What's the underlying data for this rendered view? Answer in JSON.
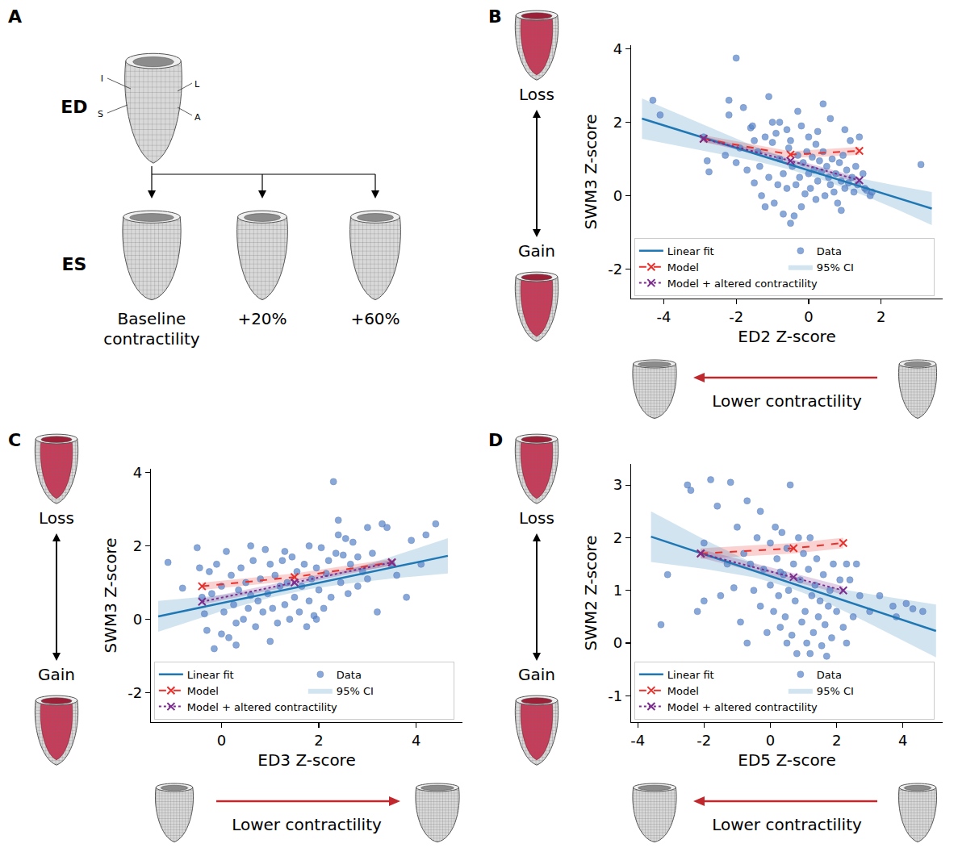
{
  "diagram": {
    "panel": "A",
    "rows": [
      "ED",
      "ES"
    ],
    "mesh_labels": [
      "I",
      "L",
      "S",
      "A"
    ],
    "columns": [
      "Baseline contractility",
      "+20%",
      "+60%"
    ]
  },
  "chart_data": [
    {
      "panel": "B",
      "type": "scatter",
      "x_label": "ED2 Z-score",
      "y_label": "SWM3 Z-score",
      "xlim": [
        -4.9,
        3.7
      ],
      "xticks": [
        -4,
        -2,
        0,
        2
      ],
      "ylim": [
        -2.8,
        4.1
      ],
      "yticks": [
        -2,
        0,
        2,
        4
      ],
      "grid": false,
      "legend": "lower left",
      "annotations": {
        "loss": "Loss",
        "gain": "Gain",
        "x_arrow": "Lower contractility"
      },
      "series": [
        {
          "name": "Linear fit",
          "type": "line",
          "color": "#1f77b4",
          "line_style": "solid",
          "x": [
            -4.6,
            3.4
          ],
          "values": [
            2.1,
            -0.35
          ]
        },
        {
          "name": "Data",
          "type": "scatter",
          "color": "#5b87cc",
          "marker": "circle",
          "x": [
            -4.3,
            -4.1,
            -2.9,
            -2.8,
            -2.75,
            -2.2,
            -2.2,
            -2.0,
            -1.9,
            -1.8,
            -1.6,
            -1.55,
            -1.5,
            -1.4,
            -1.35,
            -1.3,
            -1.2,
            -1.1,
            -1.0,
            -1.0,
            -0.9,
            -0.85,
            -0.8,
            -0.7,
            -0.7,
            -0.6,
            -0.55,
            -0.5,
            -0.45,
            -0.4,
            -0.35,
            -0.3,
            -0.3,
            -0.25,
            -0.2,
            -0.15,
            -0.1,
            -0.05,
            0.0,
            0.0,
            0.05,
            0.1,
            0.15,
            0.2,
            0.2,
            0.25,
            0.3,
            0.35,
            0.4,
            0.45,
            0.5,
            0.55,
            0.6,
            0.6,
            0.65,
            0.7,
            0.75,
            0.8,
            0.85,
            0.9,
            0.95,
            1.0,
            1.05,
            1.1,
            1.15,
            1.2,
            1.25,
            1.3,
            1.35,
            1.4,
            1.5,
            1.55,
            1.6,
            1.7,
            1.75,
            3.1,
            -1.2,
            -0.6,
            -1.7,
            -1.5,
            -2.0,
            -1.1,
            -0.2,
            -0.95,
            0.4,
            -2.3,
            -0.5,
            1.0,
            0.9,
            -0.8,
            0.25
          ],
          "values": [
            2.6,
            2.2,
            1.6,
            0.95,
            0.65,
            2.6,
            2.2,
            3.75,
            1.3,
            2.4,
            1.85,
            1.9,
            1.5,
            1.2,
            0.8,
            0.0,
            1.6,
            2.7,
            2.0,
            1.45,
            1.7,
            0.3,
            1.0,
            0.6,
            -0.5,
            1.8,
            1.3,
            1.5,
            0.8,
            -0.55,
            0.3,
            2.3,
            1.1,
            0.5,
            1.9,
            0.9,
            0.05,
            1.2,
            0.6,
            1.6,
            0.2,
            1.05,
            0.7,
            1.4,
            -0.1,
            0.4,
            0.95,
            0.65,
            1.2,
            0.0,
            0.8,
            0.5,
            2.1,
            0.3,
            1.0,
            0.1,
            0.6,
            -0.2,
            0.9,
            0.4,
            1.1,
            0.2,
            0.7,
            0.35,
            1.5,
            0.5,
            0.1,
            0.8,
            0.3,
            1.6,
            0.6,
            0.2,
            0.15,
            0.0,
            0.1,
            0.85,
            -0.3,
            0.2,
            0.7,
            0.35,
            0.9,
            0.5,
            -0.3,
            -0.2,
            2.5,
            1.1,
            -0.75,
            1.8,
            -0.4,
            2.0,
            1.75
          ]
        },
        {
          "name": "Model",
          "type": "line",
          "color": "#e8302c",
          "line_style": "dashed",
          "marker": "x",
          "x": [
            -2.9,
            -0.5,
            1.4
          ],
          "values": [
            1.55,
            1.12,
            1.22
          ],
          "lower": [
            1.45,
            1.03,
            1.11
          ],
          "upper": [
            1.65,
            1.21,
            1.33
          ]
        },
        {
          "name": "95% CI",
          "type": "band",
          "color": "#1f77b4",
          "x": [
            -4.6,
            -3,
            -1.5,
            -0.5,
            0.5,
            1.5,
            2.5,
            3.4
          ],
          "lower": [
            1.55,
            1.24,
            0.95,
            0.71,
            0.39,
            0.02,
            -0.4,
            -0.8
          ],
          "upper": [
            2.65,
            1.98,
            1.35,
            0.99,
            0.69,
            0.46,
            0.26,
            0.1
          ]
        },
        {
          "name": "Model + altered contractility",
          "type": "line",
          "color": "#7b2d8e",
          "line_style": "dotted",
          "marker": "x",
          "x": [
            -2.9,
            -0.5,
            1.4
          ],
          "values": [
            1.55,
            0.95,
            0.42
          ],
          "lower": [
            1.48,
            0.88,
            0.34
          ],
          "upper": [
            1.62,
            1.02,
            0.5
          ]
        }
      ]
    },
    {
      "panel": "C",
      "type": "scatter",
      "x_label": "ED3 Z-score",
      "y_label": "SWM3 Z-score",
      "xlim": [
        -1.45,
        4.95
      ],
      "xticks": [
        0,
        2,
        4
      ],
      "ylim": [
        -2.8,
        4.1
      ],
      "yticks": [
        -2,
        0,
        2,
        4
      ],
      "grid": false,
      "legend": "lower left",
      "annotations": {
        "loss": "Loss",
        "gain": "Gain",
        "x_arrow": "Lower contractility"
      },
      "series": [
        {
          "name": "Linear fit",
          "type": "line",
          "color": "#1f77b4",
          "line_style": "solid",
          "x": [
            -1.3,
            4.65
          ],
          "values": [
            0.08,
            1.73
          ]
        },
        {
          "name": "Data",
          "type": "scatter",
          "color": "#5b87cc",
          "marker": "circle",
          "x": [
            -1.1,
            -0.8,
            -0.5,
            -0.45,
            -0.4,
            -0.35,
            -0.3,
            -0.25,
            -0.2,
            -0.15,
            -0.1,
            0.0,
            0.05,
            0.1,
            0.15,
            0.2,
            0.25,
            0.3,
            0.35,
            0.4,
            0.45,
            0.5,
            0.55,
            0.6,
            0.65,
            0.7,
            0.75,
            0.8,
            0.85,
            0.9,
            0.95,
            1.0,
            1.05,
            1.1,
            1.15,
            1.2,
            1.25,
            1.3,
            1.35,
            1.4,
            1.45,
            1.5,
            1.55,
            1.6,
            1.65,
            1.7,
            1.75,
            1.8,
            1.85,
            1.9,
            1.95,
            2.0,
            2.05,
            2.1,
            2.15,
            2.2,
            2.25,
            2.3,
            2.35,
            2.4,
            2.45,
            2.5,
            2.55,
            2.6,
            2.65,
            2.7,
            2.8,
            2.9,
            3.0,
            3.1,
            3.2,
            3.3,
            3.5,
            3.6,
            3.8,
            3.9,
            4.1,
            4.2,
            4.4,
            1.0,
            0.3,
            2.4,
            1.8,
            0.6,
            3.0,
            1.3,
            1.95,
            3.4,
            2.8,
            0.0
          ],
          "values": [
            1.55,
            0.85,
            1.95,
            1.4,
            0.6,
            0.15,
            -0.3,
            1.3,
            0.7,
            -0.8,
            1.5,
            0.9,
            0.2,
            1.85,
            -0.5,
            1.2,
            0.4,
            -0.1,
            0.8,
            1.4,
            0.0,
            1.0,
            0.3,
            0.65,
            1.6,
            -0.2,
            0.5,
            1.1,
            0.2,
            1.9,
            0.7,
            1.5,
            0.3,
            1.2,
            -0.1,
            0.9,
            1.6,
            0.4,
            1.0,
            0.0,
            1.7,
            0.6,
            1.3,
            0.2,
            0.9,
            1.5,
            -0.2,
            0.5,
            1.1,
            0.1,
            1.4,
            0.8,
            1.95,
            0.3,
            1.25,
            1.6,
            0.6,
            3.75,
            1.8,
            2.7,
            1.0,
            1.75,
            2.2,
            0.7,
            1.5,
            2.1,
            0.9,
            1.3,
            2.5,
            1.8,
            0.2,
            2.6,
            1.5,
            1.2,
            0.6,
            2.15,
            1.5,
            2.3,
            2.6,
            -0.6,
            -0.7,
            2.3,
            2.0,
            2.0,
            1.1,
            1.85,
            0.0,
            2.5,
            1.7,
            -0.4
          ]
        },
        {
          "name": "Model",
          "type": "line",
          "color": "#e8302c",
          "line_style": "dashed",
          "marker": "x",
          "x": [
            -0.4,
            1.5,
            3.5
          ],
          "values": [
            0.9,
            1.15,
            1.55
          ],
          "lower": [
            0.8,
            1.05,
            1.45
          ],
          "upper": [
            1.0,
            1.25,
            1.65
          ]
        },
        {
          "name": "95% CI",
          "type": "band",
          "color": "#1f77b4",
          "x": [
            -1.3,
            0,
            1,
            1.8,
            2.5,
            3.5,
            4.65
          ],
          "lower": [
            -0.34,
            0.22,
            0.59,
            0.82,
            0.96,
            1.11,
            1.25
          ],
          "upper": [
            0.5,
            0.66,
            0.85,
            1.06,
            1.3,
            1.71,
            2.21
          ]
        },
        {
          "name": "Model + altered contractility",
          "type": "line",
          "color": "#7b2d8e",
          "line_style": "dotted",
          "marker": "x",
          "x": [
            -0.4,
            1.5,
            3.5
          ],
          "values": [
            0.48,
            1.0,
            1.55
          ],
          "lower": [
            0.4,
            0.92,
            1.48
          ],
          "upper": [
            0.56,
            1.08,
            1.62
          ]
        }
      ]
    },
    {
      "panel": "D",
      "type": "scatter",
      "x_label": "ED5 Z-score",
      "y_label": "SWM2 Z-score",
      "xlim": [
        -4.2,
        5.2
      ],
      "xticks": [
        -4,
        -2,
        0,
        2,
        4
      ],
      "ylim": [
        -1.5,
        3.4
      ],
      "yticks": [
        -1,
        0,
        1,
        2,
        3
      ],
      "grid": false,
      "legend": "lower left",
      "annotations": {
        "loss": "Loss",
        "gain": "Gain",
        "x_arrow": "Lower contractility"
      },
      "series": [
        {
          "name": "Linear fit",
          "type": "line",
          "color": "#1f77b4",
          "line_style": "solid",
          "x": [
            -3.6,
            5.0
          ],
          "values": [
            2.02,
            0.23
          ]
        },
        {
          "name": "Data",
          "type": "scatter",
          "color": "#5b87cc",
          "marker": "circle",
          "x": [
            -3.3,
            -3.1,
            -2.5,
            -2.4,
            -2.2,
            -2.0,
            -1.8,
            -1.6,
            -1.3,
            -1.2,
            -1.1,
            -1.0,
            -0.9,
            -0.8,
            -0.7,
            -0.6,
            -0.5,
            -0.4,
            -0.3,
            -0.2,
            -0.1,
            0.0,
            0.0,
            0.1,
            0.15,
            0.2,
            0.25,
            0.3,
            0.35,
            0.4,
            0.45,
            0.5,
            0.55,
            0.6,
            0.65,
            0.7,
            0.75,
            0.8,
            0.85,
            0.9,
            0.95,
            1.0,
            1.05,
            1.1,
            1.15,
            1.2,
            1.25,
            1.3,
            1.35,
            1.4,
            1.45,
            1.5,
            1.55,
            1.6,
            1.65,
            1.7,
            1.75,
            1.8,
            1.85,
            1.9,
            2.0,
            2.1,
            2.2,
            2.3,
            2.4,
            2.5,
            2.6,
            2.7,
            3.0,
            3.3,
            3.7,
            3.8,
            4.1,
            4.3,
            4.6,
            -1.5,
            -0.3,
            0.5,
            1.2,
            -2.0,
            0.3,
            -0.7,
            2.3
          ],
          "values": [
            0.35,
            1.3,
            3.0,
            2.9,
            0.6,
            1.9,
            3.1,
            2.6,
            1.5,
            3.05,
            1.05,
            2.2,
            0.4,
            1.7,
            0.0,
            1.5,
            1.0,
            2.0,
            0.7,
            1.4,
            0.2,
            1.9,
            1.1,
            0.6,
            2.2,
            1.6,
            0.9,
            0.3,
            2.1,
            1.3,
            0.5,
            1.8,
            1.0,
            3.0,
            0.15,
            1.5,
            0.8,
            -0.2,
            2.0,
            1.2,
            0.4,
            1.7,
            0.6,
            0.0,
            1.4,
            2.0,
            0.9,
            0.2,
            1.1,
            1.6,
            0.5,
            0.8,
            -0.05,
            1.3,
            0.35,
            -0.25,
            0.7,
            1.0,
            0.1,
            1.5,
            0.6,
            1.2,
            0.3,
            1.5,
            1.2,
            0.5,
            1.5,
            0.9,
            0.6,
            0.9,
            0.7,
            0.5,
            0.75,
            0.65,
            0.6,
            0.9,
            2.5,
            0.0,
            -0.2,
            0.8,
            1.35,
            2.7,
            0.0
          ]
        },
        {
          "name": "Model",
          "type": "line",
          "color": "#e8302c",
          "line_style": "dashed",
          "marker": "x",
          "x": [
            -2.1,
            0.7,
            2.2
          ],
          "values": [
            1.7,
            1.8,
            1.9
          ],
          "lower": [
            1.6,
            1.7,
            1.8
          ],
          "upper": [
            1.8,
            1.9,
            2.0
          ]
        },
        {
          "name": "95% CI",
          "type": "band",
          "color": "#1f77b4",
          "x": [
            -3.6,
            -2,
            -0.5,
            0.5,
            1.5,
            3,
            5
          ],
          "lower": [
            1.54,
            1.41,
            1.25,
            1.07,
            0.83,
            0.37,
            -0.27
          ],
          "upper": [
            2.5,
            1.97,
            1.51,
            1.27,
            1.09,
            0.93,
            0.73
          ]
        },
        {
          "name": "Model + altered contractility",
          "type": "line",
          "color": "#7b2d8e",
          "line_style": "dotted",
          "marker": "x",
          "x": [
            -2.1,
            0.7,
            2.2
          ],
          "values": [
            1.7,
            1.25,
            1.0
          ],
          "lower": [
            1.62,
            1.17,
            0.92
          ],
          "upper": [
            1.78,
            1.33,
            1.08
          ]
        }
      ]
    }
  ]
}
